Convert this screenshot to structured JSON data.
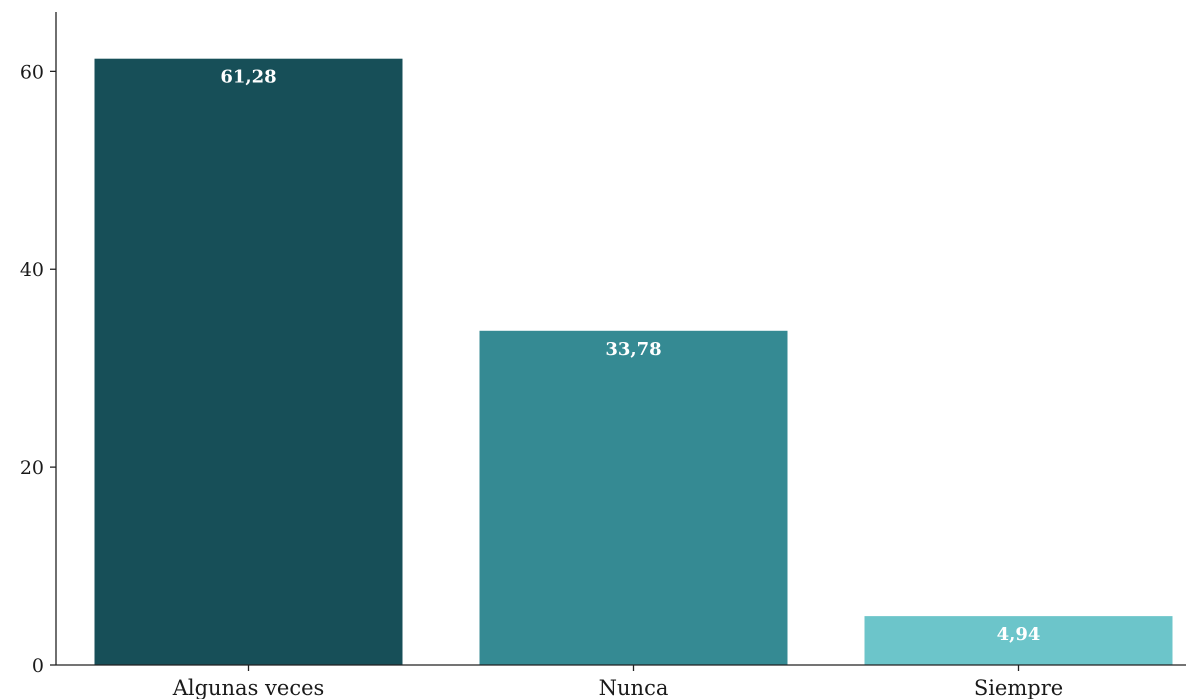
{
  "chart_data": {
    "type": "bar",
    "categories": [
      "Algunas veces",
      "Nunca",
      "Siempre"
    ],
    "values": [
      61.28,
      33.78,
      4.94
    ],
    "value_labels": [
      "61,28",
      "33,78",
      "4,94"
    ],
    "colors": [
      "#174f58",
      "#358a93",
      "#6cc5ca"
    ],
    "title": "",
    "xlabel": "",
    "ylabel": "",
    "ylim": [
      0,
      66
    ],
    "yticks": [
      0,
      20,
      40,
      60
    ],
    "ytick_labels": [
      "0",
      "20",
      "40",
      "60"
    ],
    "grid": false,
    "legend": "none"
  }
}
